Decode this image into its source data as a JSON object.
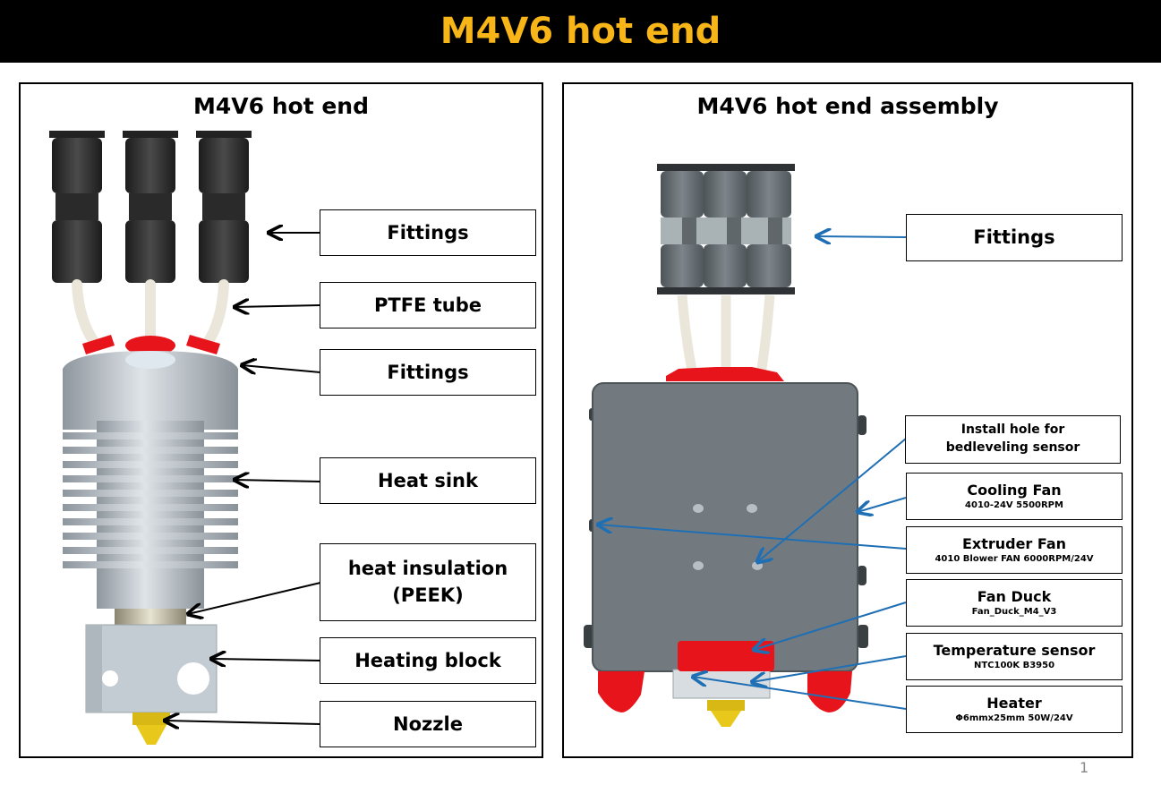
{
  "banner": {
    "title": "M4V6 hot end"
  },
  "left_panel": {
    "title": "M4V6 hot end",
    "labels": [
      {
        "text": "Fittings"
      },
      {
        "text": "PTFE tube"
      },
      {
        "text": "Fittings"
      },
      {
        "text": "Heat sink"
      },
      {
        "text": "heat insulation\n(PEEK)"
      },
      {
        "text": "Heating block"
      },
      {
        "text": "Nozzle"
      }
    ]
  },
  "right_panel": {
    "title": "M4V6 hot end assembly",
    "labels": [
      {
        "text": "Fittings",
        "sub": ""
      },
      {
        "text": "Install hole for bedleveling sensor",
        "sub": ""
      },
      {
        "text": "Cooling Fan",
        "sub": "4010-24V 5500RPM"
      },
      {
        "text": "Extruder Fan",
        "sub": "4010 Blower FAN 6000RPM/24V"
      },
      {
        "text": "Fan Duck",
        "sub": "Fan_Duck_M4_V3"
      },
      {
        "text": "Temperature sensor",
        "sub": "NTC100K B3950"
      },
      {
        "text": "Heater",
        "sub": "Φ6mmx25mm 50W/24V"
      }
    ]
  },
  "page_number": "1",
  "colors": {
    "banner_text": "#f7b517",
    "arrow_left": "#000000",
    "arrow_right": "#1f6fb5",
    "red_parts": "#e8141b",
    "nozzle": "#e8c81a"
  }
}
